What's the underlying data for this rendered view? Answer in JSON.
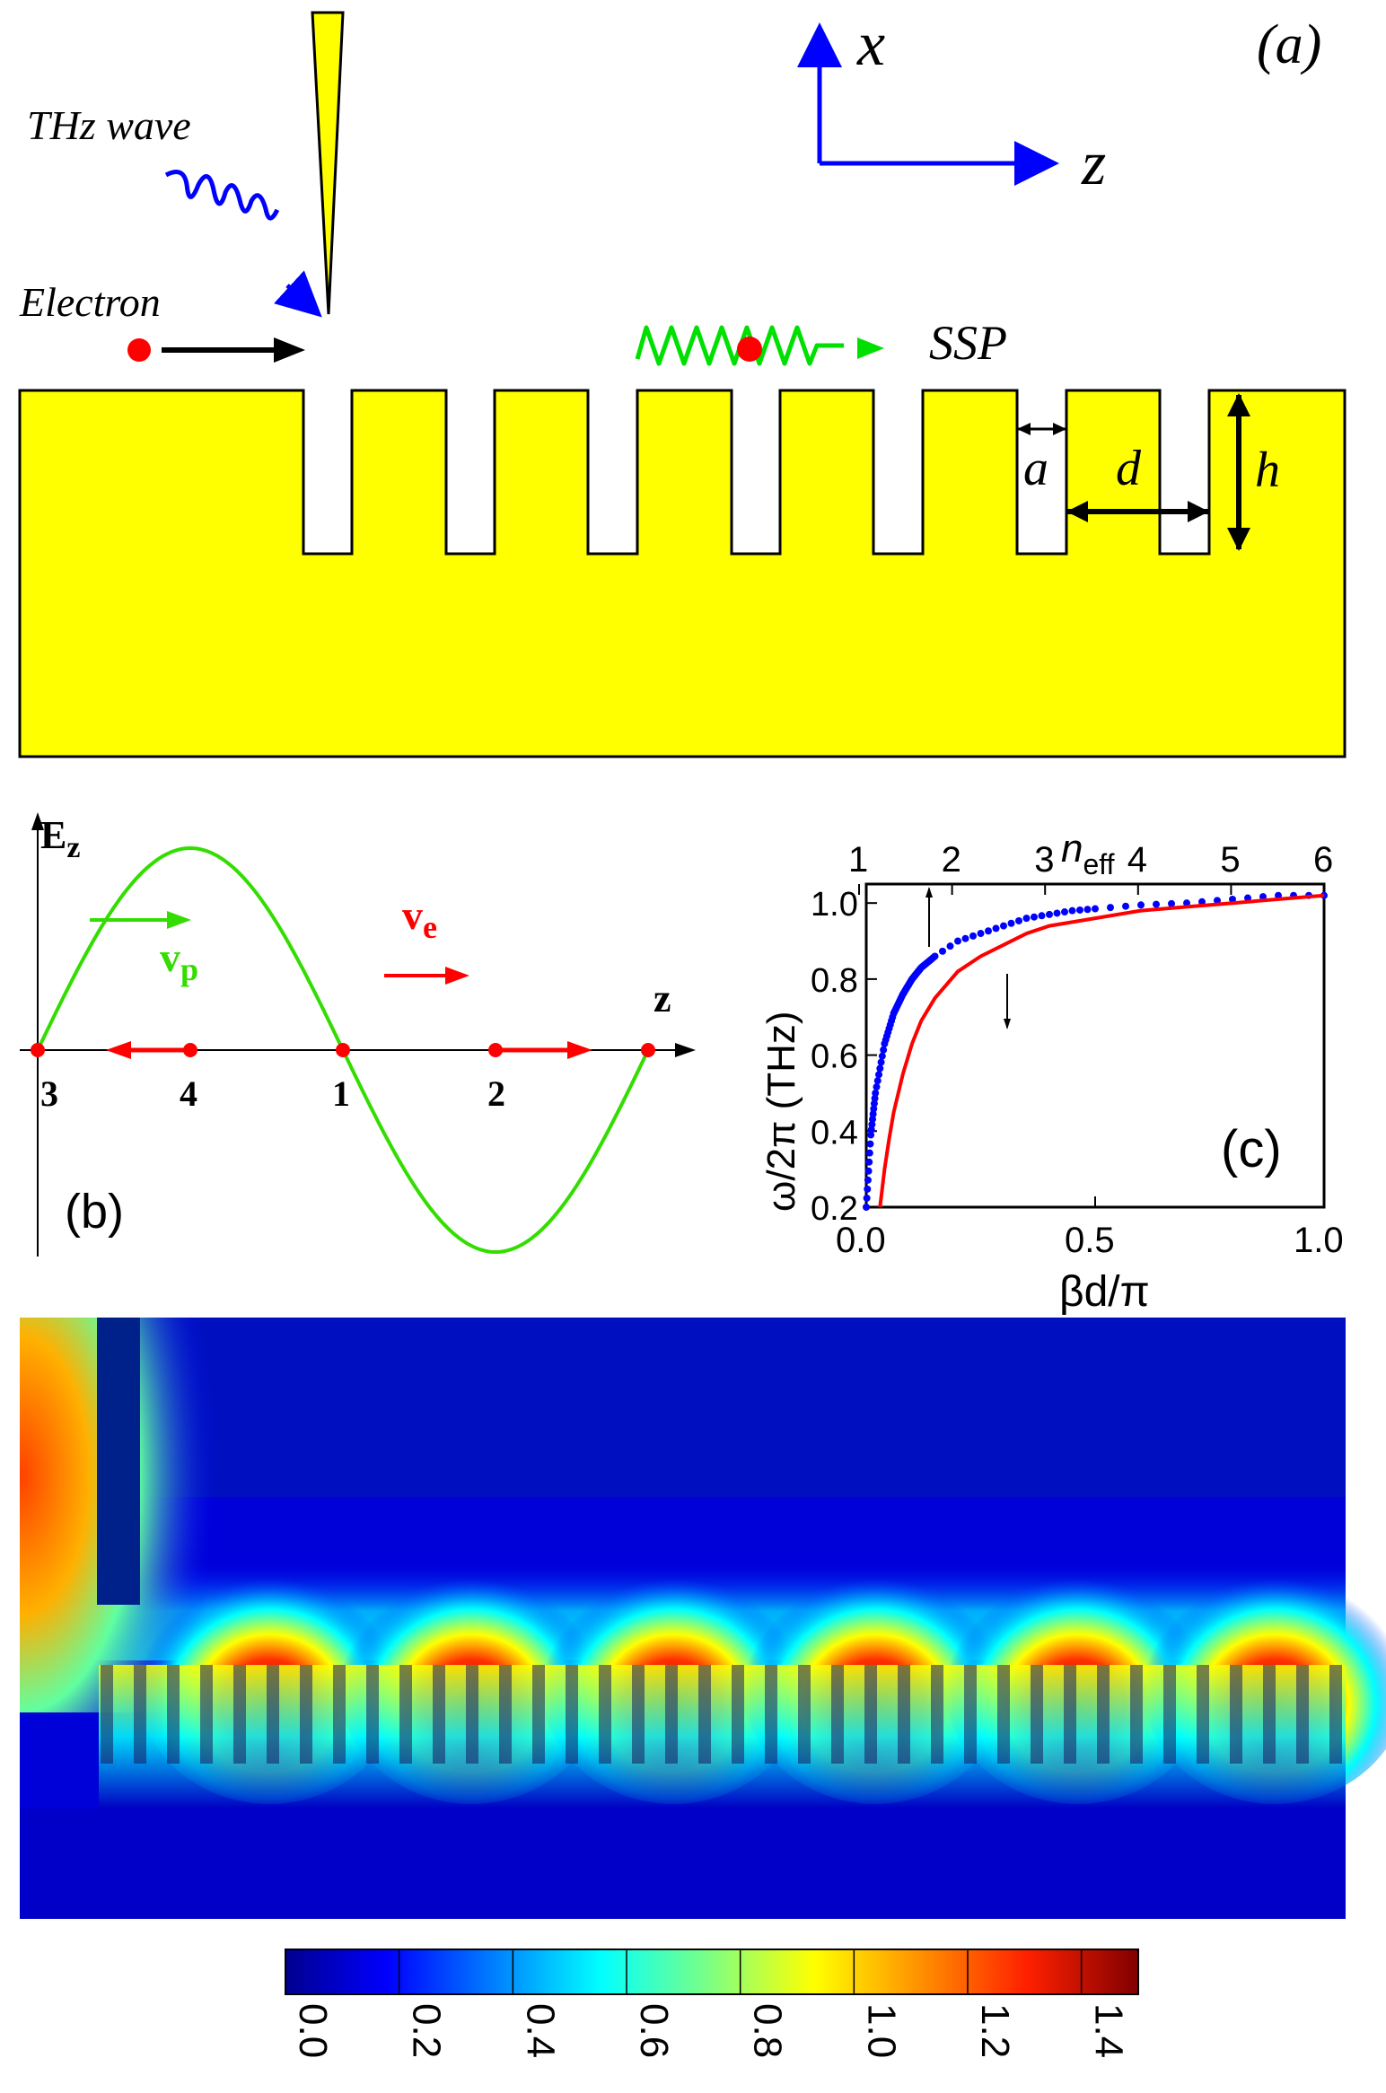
{
  "panel_a": {
    "panel_label": "(a)",
    "axis_x_label": "x",
    "axis_z_label": "z",
    "thz_label": "THz wave",
    "electron_label": "Electron",
    "ssp_label": "SSP",
    "dim_a": "a",
    "dim_d": "d",
    "dim_h": "h",
    "colors": {
      "metal": "#ffff00",
      "axes": "#0000ff",
      "electron": "#ff0000",
      "ssp": "#00e000",
      "thz": "#0000ff"
    }
  },
  "panel_b": {
    "panel_label": "(b)",
    "y_label_main": "E",
    "y_label_sub": "z",
    "x_label": "z",
    "vp_main": "v",
    "vp_sub": "p",
    "ve_main": "v",
    "ve_sub": "e",
    "points": [
      "3",
      "4",
      "1",
      "2"
    ],
    "colors": {
      "wave": "#33dd00",
      "arrows": "#ff0000"
    }
  },
  "panel_c": {
    "panel_label": "(c)",
    "chart_data": {
      "type": "line",
      "xlabel": "βd/π",
      "ylabel": "ω/2π (THz)",
      "top_xlabel_main": "n",
      "top_xlabel_sub": "eff",
      "xlim": [
        0.0,
        1.0
      ],
      "ylim": [
        0.2,
        1.05
      ],
      "x_ticks": [
        "0.0",
        "0.5",
        "1.0"
      ],
      "y_ticks": [
        "0.2",
        "0.4",
        "0.6",
        "0.8",
        "1.0"
      ],
      "top_ticks": [
        "1",
        "2",
        "3",
        "4",
        "5",
        "6"
      ],
      "series": [
        {
          "color": "#0000ff",
          "style": "dots",
          "x": [
            0.0,
            0.01,
            0.02,
            0.04,
            0.06,
            0.08,
            0.1,
            0.12,
            0.15,
            0.2,
            0.25,
            0.3,
            0.35,
            0.4,
            0.45,
            0.5,
            0.6,
            0.7,
            0.8,
            0.9,
            1.0
          ],
          "y": [
            0.2,
            0.39,
            0.5,
            0.63,
            0.71,
            0.76,
            0.8,
            0.83,
            0.86,
            0.9,
            0.92,
            0.94,
            0.96,
            0.97,
            0.98,
            0.985,
            0.995,
            1.0,
            1.01,
            1.02,
            1.02
          ]
        },
        {
          "color": "#ff0000",
          "style": "line",
          "x": [
            0.03,
            0.04,
            0.05,
            0.06,
            0.08,
            0.1,
            0.12,
            0.15,
            0.2,
            0.25,
            0.3,
            0.35,
            0.4,
            0.5,
            0.6,
            0.7,
            0.8,
            0.9,
            1.0
          ],
          "y": [
            0.2,
            0.3,
            0.38,
            0.45,
            0.55,
            0.63,
            0.69,
            0.75,
            0.82,
            0.86,
            0.89,
            0.92,
            0.94,
            0.96,
            0.98,
            0.99,
            1.0,
            1.01,
            1.02
          ]
        }
      ]
    }
  },
  "colorbar": {
    "ticks": [
      "0.0",
      "0.2",
      "0.4",
      "0.6",
      "0.8",
      "1.0",
      "1.2",
      "1.4"
    ],
    "colors": [
      "#00008f",
      "#0000ff",
      "#0080ff",
      "#00ffff",
      "#80ff80",
      "#ffff00",
      "#ff8000",
      "#ff0000",
      "#800000"
    ]
  }
}
